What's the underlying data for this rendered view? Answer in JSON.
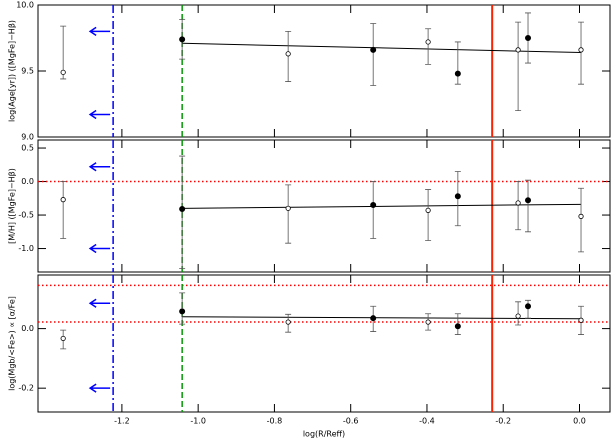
{
  "chart_data": [
    {
      "type": "scatter",
      "y_label": "log(Age[yr])     ([MgFe]−Hβ)",
      "ylim": [
        9.0,
        10.0
      ],
      "yticks": [
        {
          "value": 9.0,
          "label": "9.0"
        },
        9.5,
        {
          "value": 10.0,
          "label": "10.0"
        }
      ],
      "x": [
        -1.354,
        -1.042,
        -0.764,
        -0.541,
        -0.397,
        -0.319,
        -0.161,
        -0.135,
        0.004
      ],
      "values": [
        9.49,
        9.74,
        9.63,
        9.66,
        9.72,
        9.48,
        9.66,
        9.75,
        9.66
      ],
      "lower": [
        9.44,
        9.59,
        9.42,
        9.39,
        9.55,
        9.4,
        9.2,
        9.56,
        9.4
      ],
      "upper": [
        9.84,
        9.89,
        9.8,
        9.86,
        9.82,
        9.72,
        9.87,
        9.94,
        9.87
      ],
      "filled": [
        false,
        true,
        false,
        true,
        false,
        true,
        false,
        true,
        false
      ],
      "fit_x": [
        -1.042,
        0.004
      ],
      "fit_y": [
        9.71,
        9.64
      ],
      "vlines": [
        {
          "x": -1.223,
          "color": "#0000ff",
          "style": "dashdot"
        },
        {
          "x": -1.042,
          "color": "#009900",
          "style": "dashed"
        },
        {
          "x": -0.229,
          "color": "#ff2200",
          "style": "solid"
        }
      ],
      "hlines": [],
      "arrow_y": [
        9.8,
        9.17
      ],
      "arrow_color": "#0000ff"
    },
    {
      "type": "scatter",
      "y_label": "[M/H]     ([MgFe]−Hβ)",
      "ylim": [
        -1.35,
        0.62
      ],
      "yticks": [
        0.5,
        {
          "value": 0.0,
          "label": "0.0"
        },
        -0.5,
        {
          "value": -1.0,
          "label": "-1.0"
        }
      ],
      "x": [
        -1.354,
        -1.042,
        -0.764,
        -0.541,
        -0.397,
        -0.319,
        -0.161,
        -0.135,
        0.004
      ],
      "values": [
        -0.27,
        -0.41,
        -0.4,
        -0.35,
        -0.43,
        -0.22,
        -0.32,
        -0.28,
        -0.52
      ],
      "lower": [
        -0.85,
        -1.3,
        -0.92,
        -0.85,
        -0.88,
        -0.66,
        -0.72,
        -0.75,
        -1.05
      ],
      "upper": [
        0.0,
        0.38,
        -0.05,
        0.0,
        -0.12,
        0.15,
        0.0,
        0.02,
        -0.1
      ],
      "filled": [
        false,
        true,
        false,
        true,
        false,
        true,
        false,
        true,
        false
      ],
      "fit_x": [
        -1.042,
        0.004
      ],
      "fit_y": [
        -0.4,
        -0.34
      ],
      "vlines": [
        {
          "x": -1.223,
          "color": "#0000ff",
          "style": "dashdot"
        },
        {
          "x": -1.042,
          "color": "#009900",
          "style": "dashed"
        },
        {
          "x": -0.229,
          "color": "#ff2200",
          "style": "solid"
        }
      ],
      "hlines": [
        {
          "y": 0.0,
          "color": "#ff0000",
          "style": "dotted"
        }
      ],
      "arrow_y": [
        0.22,
        -1.0
      ],
      "arrow_color": "#0000ff"
    },
    {
      "type": "scatter",
      "y_label": "log(Mgb/<Fe>) ∝ [α/Fe]",
      "x_label": "log(R/Reff)",
      "xlim": [
        -1.42,
        0.08
      ],
      "xticks": [
        -1.2,
        {
          "value": -1.0,
          "label": "-1.0"
        },
        -0.8,
        -0.6,
        -0.4,
        -0.2,
        {
          "value": 0.0,
          "label": "0.0"
        }
      ],
      "ylim": [
        -0.28,
        0.18
      ],
      "yticks": [
        {
          "value": 0.0,
          "label": "0.0"
        },
        -0.2
      ],
      "x": [
        -1.354,
        -1.042,
        -0.764,
        -0.541,
        -0.397,
        -0.319,
        -0.161,
        -0.135,
        0.004
      ],
      "values": [
        -0.033,
        0.058,
        0.022,
        0.035,
        0.022,
        0.008,
        0.042,
        0.075,
        0.028
      ],
      "lower": [
        -0.068,
        0.015,
        -0.012,
        -0.01,
        -0.005,
        -0.02,
        0.012,
        0.035,
        -0.02
      ],
      "upper": [
        -0.005,
        0.12,
        0.048,
        0.075,
        0.05,
        0.05,
        0.09,
        0.095,
        0.075
      ],
      "filled": [
        false,
        true,
        false,
        true,
        false,
        true,
        false,
        true,
        false
      ],
      "fit_x": [
        -1.042,
        0.004
      ],
      "fit_y": [
        0.04,
        0.033
      ],
      "vlines": [
        {
          "x": -1.223,
          "color": "#0000ff",
          "style": "dashdot"
        },
        {
          "x": -1.042,
          "color": "#009900",
          "style": "dashed"
        },
        {
          "x": -0.229,
          "color": "#ff2200",
          "style": "solid"
        }
      ],
      "hlines": [
        {
          "y": 0.145,
          "color": "#ff0000",
          "style": "dotted"
        },
        {
          "y": 0.022,
          "color": "#ff0000",
          "style": "dotted"
        }
      ],
      "arrow_y": [
        0.085,
        -0.2
      ],
      "arrow_color": "#0000ff"
    }
  ]
}
